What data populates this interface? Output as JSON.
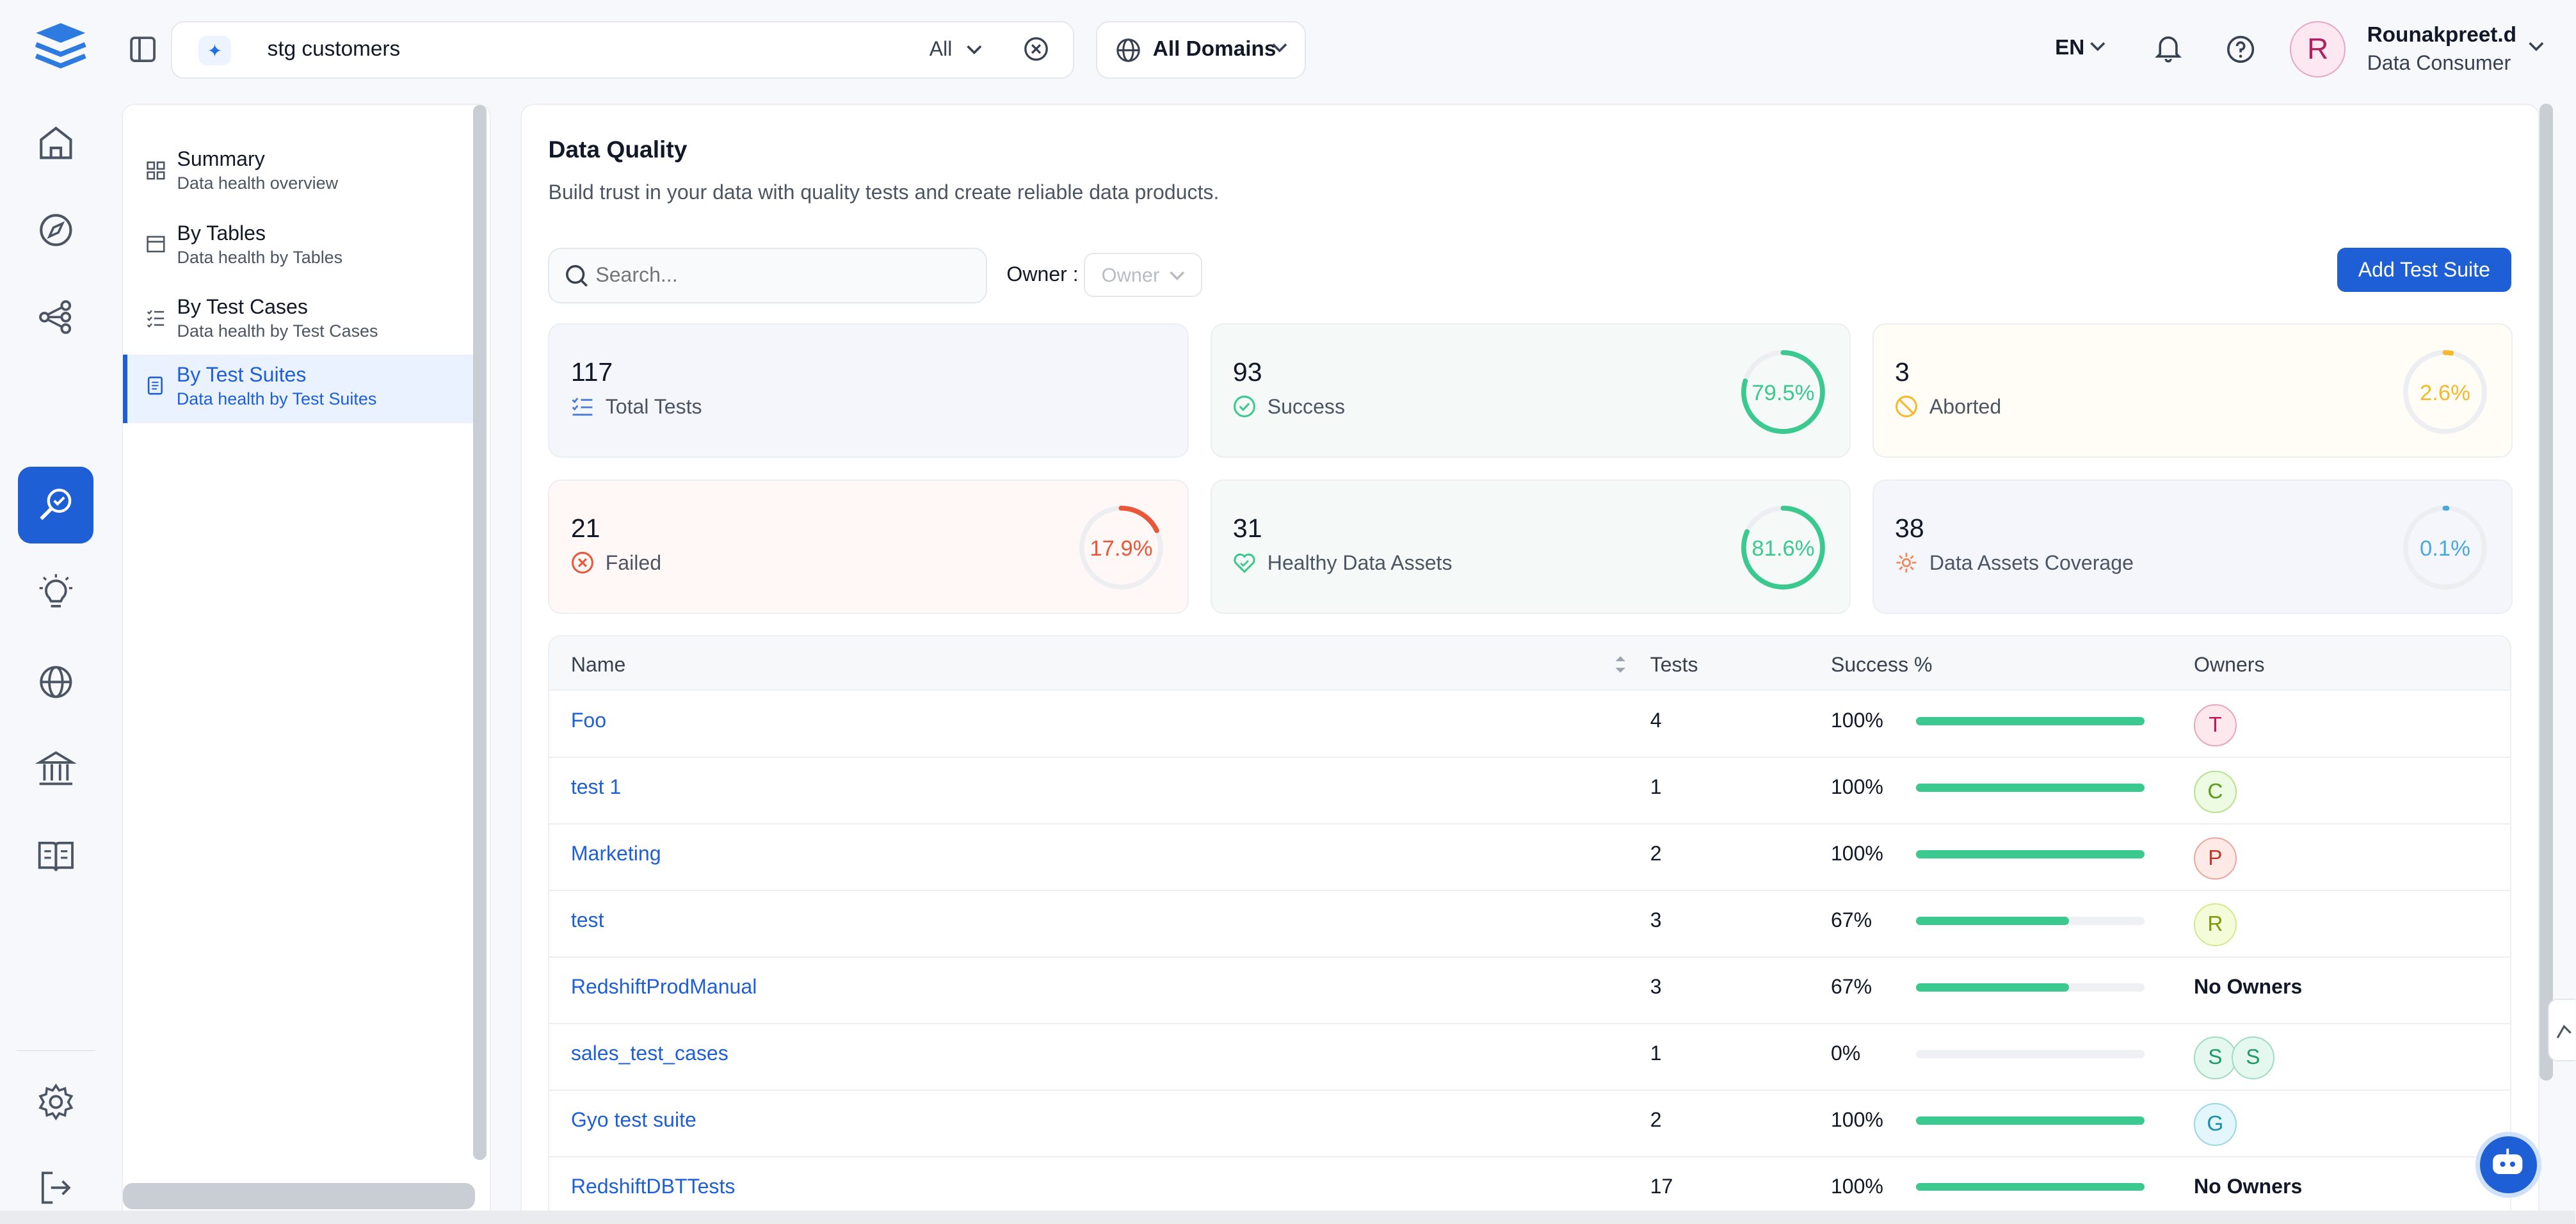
{
  "topbar": {
    "search_query": "stg customers",
    "search_filter": "All",
    "domain_label": "All Domains",
    "language": "EN",
    "user_initial": "R",
    "user_name": "Rounakpreet.d",
    "user_role": "Data Consumer"
  },
  "rail": {
    "items": [
      "home-icon",
      "explore-icon",
      "lineage-icon",
      "data-quality-icon",
      "insights-icon",
      "domains-icon",
      "governance-icon",
      "glossary-icon",
      "settings-icon",
      "logout-icon"
    ],
    "active": "data-quality-icon"
  },
  "left_nav": {
    "items": [
      {
        "title": "Summary",
        "subtitle": "Data health overview",
        "selected": false
      },
      {
        "title": "By Tables",
        "subtitle": "Data health by Tables",
        "selected": false
      },
      {
        "title": "By Test Cases",
        "subtitle": "Data health by Test Cases",
        "selected": false
      },
      {
        "title": "By Test Suites",
        "subtitle": "Data health by Test Suites",
        "selected": true
      }
    ]
  },
  "page": {
    "title": "Data Quality",
    "subtitle": "Build trust in your data with quality tests and create reliable data products.",
    "search_placeholder": "Search...",
    "owner_label": "Owner",
    "owner_placeholder": "Owner",
    "add_button": "Add Test Suite"
  },
  "stats": [
    {
      "value": "117",
      "label": "Total Tests",
      "percent": null,
      "color": "#4b7bd8",
      "bg": "#f4f6fb"
    },
    {
      "value": "93",
      "label": "Success",
      "percent": "79.5%",
      "fraction": 0.795,
      "color": "#3cc98f",
      "bg": "#f5f9f8"
    },
    {
      "value": "3",
      "label": "Aborted",
      "percent": "2.6%",
      "fraction": 0.026,
      "color": "#f5b82e",
      "bg": "#fffdf5"
    },
    {
      "value": "21",
      "label": "Failed",
      "percent": "17.9%",
      "fraction": 0.179,
      "color": "#e8573a",
      "bg": "#fff8f6"
    },
    {
      "value": "31",
      "label": "Healthy Data Assets",
      "percent": "81.6%",
      "fraction": 0.816,
      "color": "#3cc98f",
      "bg": "#f5f9f8"
    },
    {
      "value": "38",
      "label": "Data Assets Coverage",
      "percent": "0.1%",
      "fraction": 0.001,
      "color": "#4aa8e0",
      "bg": "#f4f6fb"
    }
  ],
  "table": {
    "headers": [
      "Name",
      "Tests",
      "Success %",
      "Owners"
    ],
    "no_owners_text": "No Owners",
    "rows": [
      {
        "name": "Foo",
        "tests": "4",
        "success": "100%",
        "fraction": 1.0,
        "owners": [
          {
            "initial": "T",
            "bg": "#fde8ee",
            "fg": "#c2185b",
            "border": "#e9a6bd"
          }
        ]
      },
      {
        "name": "test 1",
        "tests": "1",
        "success": "100%",
        "fraction": 1.0,
        "owners": [
          {
            "initial": "C",
            "bg": "#eefbe3",
            "fg": "#5a9a1a",
            "border": "#b8e08f"
          }
        ]
      },
      {
        "name": "Marketing",
        "tests": "2",
        "success": "100%",
        "fraction": 1.0,
        "owners": [
          {
            "initial": "P",
            "bg": "#fde9e6",
            "fg": "#c0392b",
            "border": "#eba89e"
          }
        ]
      },
      {
        "name": "test",
        "tests": "3",
        "success": "67%",
        "fraction": 0.67,
        "owners": [
          {
            "initial": "R",
            "bg": "#f3fbd9",
            "fg": "#7a9a10",
            "border": "#d3e98c"
          }
        ]
      },
      {
        "name": "RedshiftProdManual",
        "tests": "3",
        "success": "67%",
        "fraction": 0.67,
        "owners": []
      },
      {
        "name": "sales_test_cases",
        "tests": "1",
        "success": "0%",
        "fraction": 0.0,
        "owners": [
          {
            "initial": "S",
            "bg": "#e4f8ef",
            "fg": "#1e9a66",
            "border": "#9fdcbf"
          },
          {
            "initial": "S",
            "bg": "#e4f8ef",
            "fg": "#1e9a66",
            "border": "#9fdcbf"
          }
        ]
      },
      {
        "name": "Gyo test suite",
        "tests": "2",
        "success": "100%",
        "fraction": 1.0,
        "owners": [
          {
            "initial": "G",
            "bg": "#e3f6fb",
            "fg": "#1890a8",
            "border": "#99d6e6"
          }
        ]
      },
      {
        "name": "RedshiftDBTTests",
        "tests": "17",
        "success": "100%",
        "fraction": 1.0,
        "owners": []
      }
    ]
  }
}
